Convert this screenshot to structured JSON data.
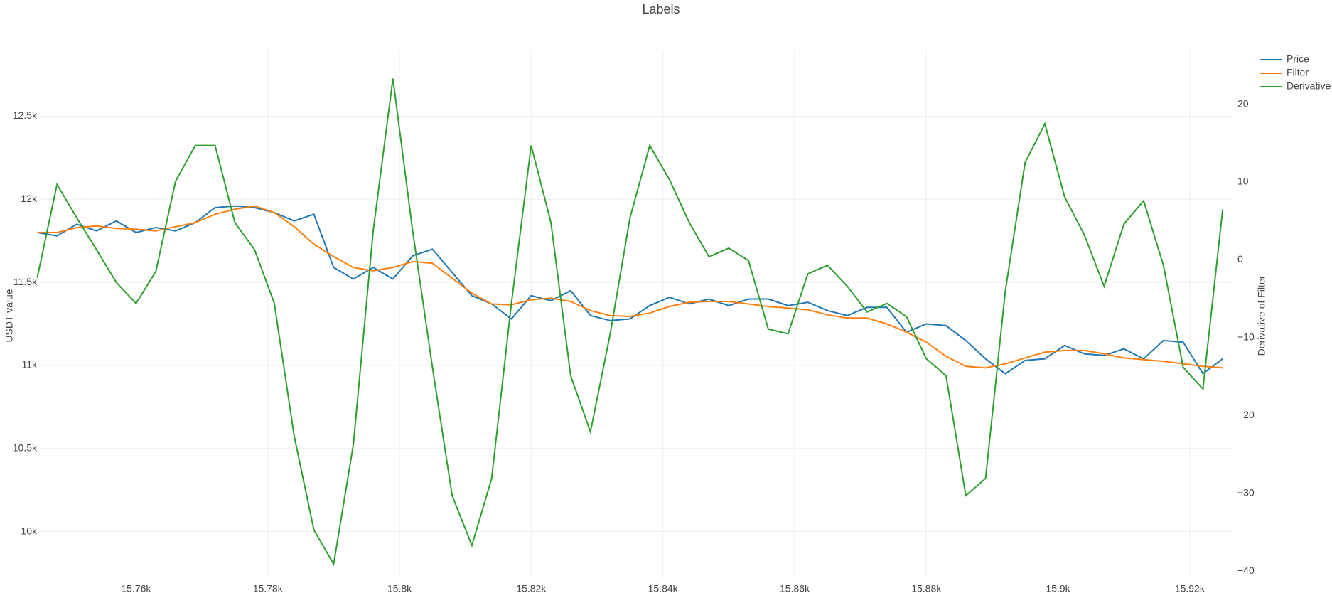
{
  "chart_data": {
    "type": "line",
    "title": "Labels",
    "y_label": "USDT value",
    "y2_label": "Derivative of Filter",
    "x": [
      15745,
      15748,
      15751,
      15754,
      15757,
      15760,
      15763,
      15766,
      15769,
      15772,
      15775,
      15778,
      15781,
      15784,
      15787,
      15790,
      15793,
      15796,
      15799,
      15802,
      15805,
      15808,
      15811,
      15814,
      15817,
      15820,
      15823,
      15826,
      15829,
      15832,
      15835,
      15838,
      15841,
      15844,
      15847,
      15850,
      15853,
      15856,
      15859,
      15862,
      15865,
      15868,
      15871,
      15874,
      15877,
      15880,
      15883,
      15886,
      15889,
      15892,
      15895,
      15898,
      15901,
      15904,
      15907,
      15910,
      15913,
      15916,
      15919,
      15922,
      15925
    ],
    "series": [
      {
        "name": "Price",
        "color": "#1f77b4",
        "values": [
          11800,
          11780,
          11850,
          11810,
          11870,
          11800,
          11830,
          11810,
          11860,
          11950,
          11960,
          11950,
          11920,
          11870,
          11910,
          11590,
          11520,
          11590,
          11520,
          11660,
          11700,
          11560,
          11420,
          11370,
          11280,
          11420,
          11390,
          11450,
          11300,
          11270,
          11280,
          11360,
          11410,
          11370,
          11400,
          11360,
          11400,
          11400,
          11360,
          11380,
          11330,
          11300,
          11350,
          11350,
          11200,
          11250,
          11240,
          11150,
          11040,
          10950,
          11030,
          11040,
          11120,
          11070,
          11060,
          11100,
          11040,
          11150,
          11140,
          10950,
          11040
        ]
      },
      {
        "name": "Filter",
        "color": "#ff7f0e",
        "values": [
          11800,
          11800,
          11830,
          11840,
          11825,
          11820,
          11810,
          11835,
          11860,
          11910,
          11940,
          11960,
          11920,
          11835,
          11730,
          11655,
          11590,
          11570,
          11590,
          11625,
          11615,
          11525,
          11435,
          11370,
          11365,
          11395,
          11405,
          11385,
          11330,
          11300,
          11295,
          11315,
          11355,
          11380,
          11385,
          11385,
          11370,
          11355,
          11345,
          11335,
          11305,
          11285,
          11285,
          11250,
          11200,
          11140,
          11055,
          10995,
          10985,
          11010,
          11045,
          11080,
          11090,
          11090,
          11070,
          11045,
          11035,
          11025,
          11010,
          10995,
          10985
        ]
      },
      {
        "name": "Derivative",
        "color": "#2ca02c",
        "axis": "y2",
        "values": [
          -2.3,
          9.7,
          5.4,
          1.3,
          -2.9,
          -5.6,
          -1.5,
          10.1,
          14.7,
          14.7,
          4.8,
          1.3,
          -5.6,
          -22.6,
          -34.7,
          -39.1,
          -23.7,
          3.7,
          23.3,
          3.7,
          -13.8,
          -30.3,
          -36.7,
          -28.1,
          -5.6,
          14.7,
          4.8,
          -14.9,
          -22.1,
          -9.5,
          5.4,
          14.7,
          10.3,
          4.8,
          0.4,
          1.5,
          -0.1,
          -8.9,
          -9.5,
          -1.8,
          -0.7,
          -3.4,
          -6.7,
          -5.6,
          -7.3,
          -12.7,
          -14.9,
          -30.3,
          -28.1,
          -4.0,
          12.5,
          17.5,
          8.1,
          3.2,
          -3.4,
          4.6,
          7.6,
          -0.7,
          -13.8,
          -16.6,
          6.5
        ]
      }
    ],
    "xlim": [
      15745.6,
      15926.6
    ],
    "xticks": [
      {
        "value": 15760,
        "label": "15.76k"
      },
      {
        "value": 15780,
        "label": "15.78k"
      },
      {
        "value": 15800,
        "label": "15.8k"
      },
      {
        "value": 15820,
        "label": "15.82k"
      },
      {
        "value": 15840,
        "label": "15.84k"
      },
      {
        "value": 15860,
        "label": "15.86k"
      },
      {
        "value": 15880,
        "label": "15.88k"
      },
      {
        "value": 15900,
        "label": "15.9k"
      },
      {
        "value": 15920,
        "label": "15.92k"
      }
    ],
    "ylim": [
      9720,
      12900
    ],
    "yticks": [
      {
        "value": 10000,
        "label": "10k"
      },
      {
        "value": 10500,
        "label": "10.5k"
      },
      {
        "value": 11000,
        "label": "11k"
      },
      {
        "value": 11500,
        "label": "11.5k"
      },
      {
        "value": 12000,
        "label": "12k"
      },
      {
        "value": 12500,
        "label": "12.5k"
      }
    ],
    "y2lim": [
      -40.9,
      27
    ],
    "y2ticks": [
      {
        "value": -40,
        "label": "−40"
      },
      {
        "value": -30,
        "label": "−30"
      },
      {
        "value": -20,
        "label": "−20"
      },
      {
        "value": -10,
        "label": "−10"
      },
      0,
      10,
      20
    ],
    "grid": true,
    "y2_zeroline": true,
    "legend": "outside-top-right"
  }
}
